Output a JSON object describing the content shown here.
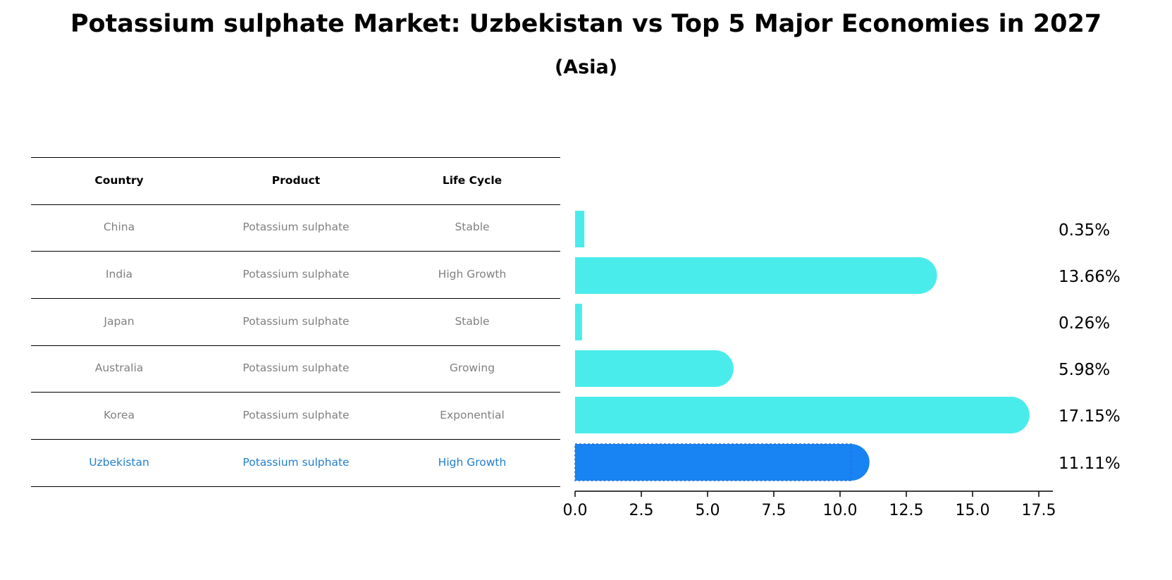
{
  "title": "Potassium sulphate Market: Uzbekistan vs Top 5 Major Economies in 2027",
  "subtitle": "(Asia)",
  "table": {
    "headers": [
      "Country",
      "Product",
      "Life Cycle"
    ],
    "rows": [
      [
        "China",
        "Potassium sulphate",
        "Stable"
      ],
      [
        "India",
        "Potassium sulphate",
        "High Growth"
      ],
      [
        "Japan",
        "Potassium sulphate",
        "Stable"
      ],
      [
        "Australia",
        "Potassium sulphate",
        "Growing"
      ],
      [
        "Korea",
        "Potassium sulphate",
        "Exponential"
      ],
      [
        "Uzbekistan",
        "Potassium sulphate",
        "High Growth"
      ]
    ],
    "highlight_row": 5
  },
  "colors": {
    "bar": "#4aeceb",
    "highlight_bar": "#1883f2",
    "highlight_text": "#1f7fd0",
    "row_text": "#808080"
  },
  "chart_data": {
    "type": "bar",
    "orientation": "horizontal",
    "categories": [
      "China",
      "India",
      "Japan",
      "Australia",
      "Korea",
      "Uzbekistan"
    ],
    "values": [
      0.35,
      13.66,
      0.26,
      5.98,
      17.15,
      11.11
    ],
    "value_labels": [
      "0.35%",
      "13.66%",
      "0.26%",
      "5.98%",
      "17.15%",
      "11.11%"
    ],
    "highlight_index": 5,
    "xlim": [
      0,
      18
    ],
    "xticks": [
      0.0,
      2.5,
      5.0,
      7.5,
      10.0,
      12.5,
      15.0,
      17.5
    ],
    "xtick_labels": [
      "0.0",
      "2.5",
      "5.0",
      "7.5",
      "10.0",
      "12.5",
      "15.0",
      "17.5"
    ],
    "grid": false
  }
}
